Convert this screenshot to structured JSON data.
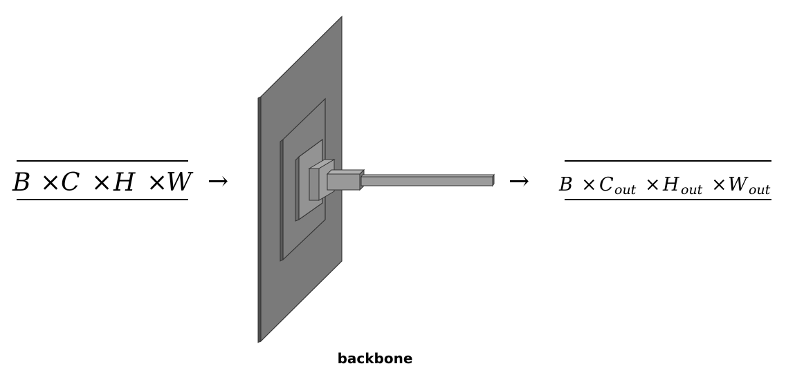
{
  "diagram": {
    "input": {
      "label": "B × C × H × W",
      "parts": [
        "B",
        "×",
        "C",
        "×",
        "H",
        "×",
        "W"
      ]
    },
    "arrow_symbol": "→",
    "output": {
      "label": "B × C_out × H_out × W_out",
      "B": "B",
      "times": "×",
      "C": "C",
      "H": "H",
      "W": "W",
      "sub": "out"
    },
    "block": {
      "caption": "backbone"
    },
    "colors": {
      "face": "#7a7a7a",
      "face_light": "#8e8e8e",
      "face_dark": "#5a5a5a",
      "edge": "#333333",
      "text": "#000000"
    }
  }
}
